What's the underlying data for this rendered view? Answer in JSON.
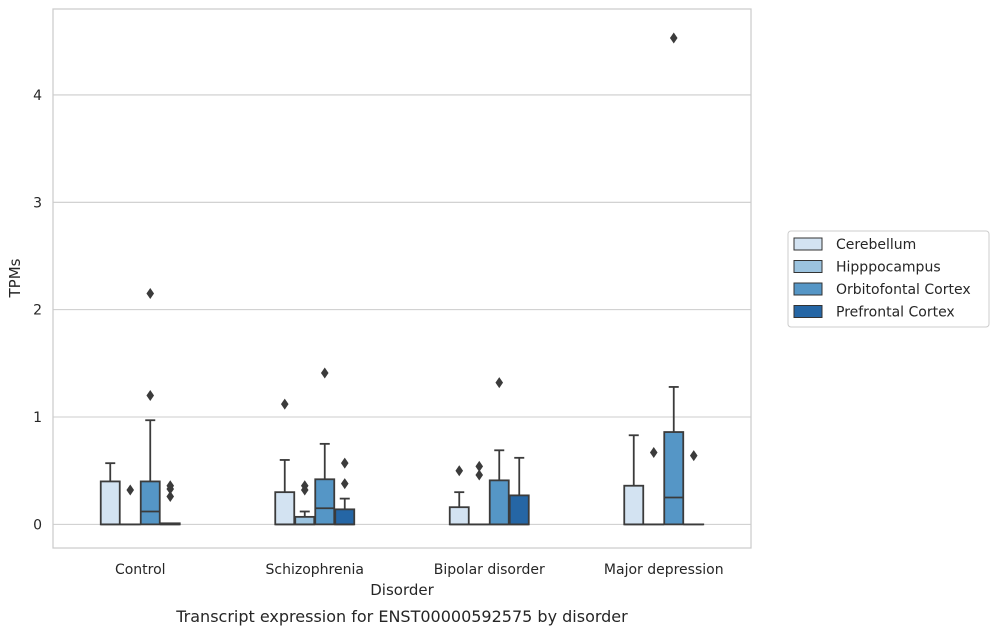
{
  "chart_data": {
    "type": "box",
    "caption": "Transcript expression for ENST00000592575 by disorder",
    "xlabel": "Disorder",
    "ylabel": "TPMs",
    "ylim": [
      -0.22,
      4.8
    ],
    "yticks": [
      0,
      1,
      2,
      3,
      4
    ],
    "grid": "horizontal",
    "legend_position": "right",
    "categories": [
      "Control",
      "Schizophrenia",
      "Bipolar disorder",
      "Major depression"
    ],
    "series": [
      {
        "name": "Cerebellum",
        "color": "#d3e3f2",
        "boxes": [
          {
            "q1": 0,
            "median": 0,
            "q3": 0.4,
            "whisker_low": 0,
            "whisker_high": 0.57,
            "outliers": []
          },
          {
            "q1": 0,
            "median": 0,
            "q3": 0.3,
            "whisker_low": 0,
            "whisker_high": 0.6,
            "outliers": [
              1.12
            ]
          },
          {
            "q1": 0,
            "median": 0,
            "q3": 0.16,
            "whisker_low": 0,
            "whisker_high": 0.3,
            "outliers": [
              0.5
            ]
          },
          {
            "q1": 0,
            "median": 0,
            "q3": 0.36,
            "whisker_low": 0,
            "whisker_high": 0.83,
            "outliers": []
          }
        ]
      },
      {
        "name": "Hipppocampus",
        "color": "#9bc3df",
        "boxes": [
          {
            "q1": 0,
            "median": 0,
            "q3": 0,
            "whisker_low": 0,
            "whisker_high": 0,
            "outliers": [
              0.32
            ]
          },
          {
            "q1": 0,
            "median": 0,
            "q3": 0.07,
            "whisker_low": 0,
            "whisker_high": 0.12,
            "outliers": [
              0.32,
              0.36
            ]
          },
          {
            "q1": 0,
            "median": 0,
            "q3": 0,
            "whisker_low": 0,
            "whisker_high": 0,
            "outliers": [
              0.46,
              0.54
            ]
          },
          {
            "q1": 0,
            "median": 0,
            "q3": 0,
            "whisker_low": 0,
            "whisker_high": 0,
            "outliers": [
              0.67
            ]
          }
        ]
      },
      {
        "name": "Orbitofontal Cortex",
        "color": "#5596c6",
        "boxes": [
          {
            "q1": 0,
            "median": 0.12,
            "q3": 0.4,
            "whisker_low": 0,
            "whisker_high": 0.97,
            "outliers": [
              1.2,
              2.15
            ]
          },
          {
            "q1": 0,
            "median": 0.15,
            "q3": 0.42,
            "whisker_low": 0,
            "whisker_high": 0.75,
            "outliers": [
              1.41
            ]
          },
          {
            "q1": 0,
            "median": 0,
            "q3": 0.41,
            "whisker_low": 0,
            "whisker_high": 0.69,
            "outliers": [
              1.32
            ]
          },
          {
            "q1": 0,
            "median": 0.25,
            "q3": 0.86,
            "whisker_low": 0,
            "whisker_high": 1.28,
            "outliers": [
              4.53
            ]
          }
        ]
      },
      {
        "name": "Prefrontal Cortex",
        "color": "#2566a5",
        "boxes": [
          {
            "q1": 0,
            "median": 0,
            "q3": 0.01,
            "whisker_low": 0,
            "whisker_high": 0.01,
            "outliers": [
              0.26,
              0.33,
              0.36
            ]
          },
          {
            "q1": 0,
            "median": 0,
            "q3": 0.14,
            "whisker_low": 0,
            "whisker_high": 0.24,
            "outliers": [
              0.38,
              0.57
            ]
          },
          {
            "q1": 0,
            "median": 0,
            "q3": 0.27,
            "whisker_low": 0,
            "whisker_high": 0.62,
            "outliers": []
          },
          {
            "q1": 0,
            "median": 0,
            "q3": 0,
            "whisker_low": 0,
            "whisker_high": 0,
            "outliers": [
              0.64
            ]
          }
        ]
      }
    ]
  }
}
